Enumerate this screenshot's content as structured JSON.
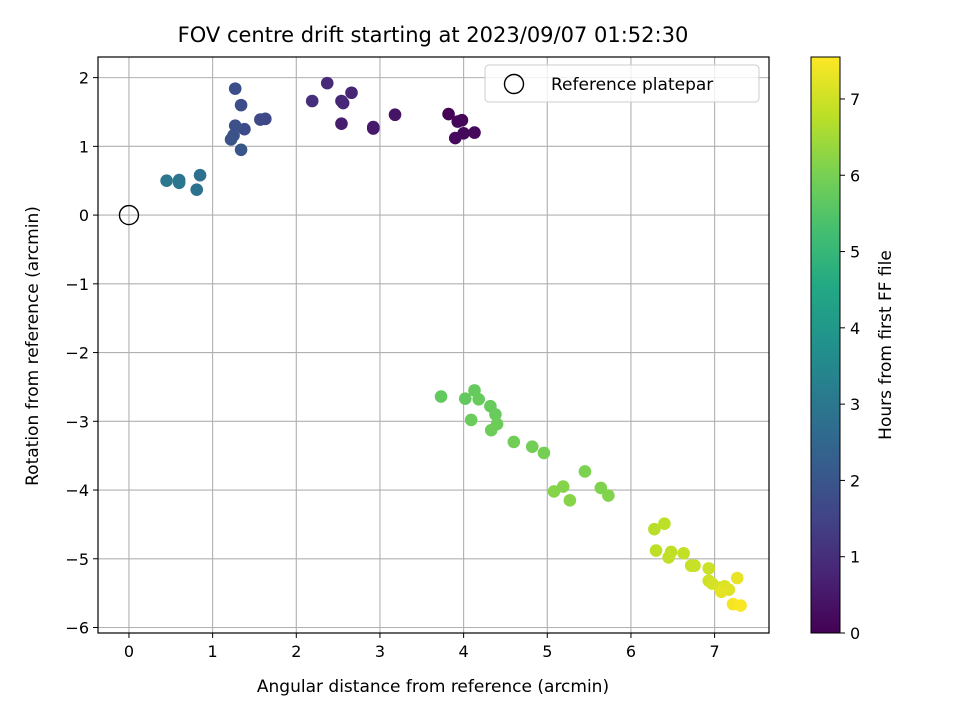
{
  "chart_data": {
    "type": "scatter",
    "title": "FOV centre drift starting at 2023/09/07 01:52:30",
    "xlabel": "Angular distance from reference (arcmin)",
    "ylabel": "Rotation from reference (arcmin)",
    "xlim": [
      -0.37,
      7.65
    ],
    "ylim": [
      -6.08,
      2.3
    ],
    "xticks": [
      0,
      1,
      2,
      3,
      4,
      5,
      6,
      7
    ],
    "yticks": [
      -6,
      -5,
      -4,
      -3,
      -2,
      -1,
      0,
      1,
      2
    ],
    "xtick_labels": [
      "0",
      "1",
      "2",
      "3",
      "4",
      "5",
      "6",
      "7"
    ],
    "ytick_labels": [
      "−6",
      "−5",
      "−4",
      "−3",
      "−2",
      "−1",
      "0",
      "1",
      "2"
    ],
    "grid": true,
    "colormap": "viridis",
    "colorbar": {
      "label": "Hours from first FF file",
      "range": [
        0,
        7.55
      ],
      "ticks": [
        0,
        1,
        2,
        3,
        4,
        5,
        6,
        7
      ],
      "tick_labels": [
        "0",
        "1",
        "2",
        "3",
        "4",
        "5",
        "6",
        "7"
      ]
    },
    "legend": {
      "placement": "top-right",
      "entries": [
        {
          "label": "Reference platepar",
          "marker": "open-circle"
        }
      ]
    },
    "reference_point": {
      "x": 0,
      "y": 0
    },
    "points": [
      {
        "x": 3.82,
        "y": 1.47,
        "hours": 0.05
      },
      {
        "x": 3.98,
        "y": 1.38,
        "hours": 0.1
      },
      {
        "x": 3.93,
        "y": 1.36,
        "hours": 0.12
      },
      {
        "x": 4.13,
        "y": 1.2,
        "hours": 0.15
      },
      {
        "x": 4.0,
        "y": 1.19,
        "hours": 0.18
      },
      {
        "x": 3.9,
        "y": 1.12,
        "hours": 0.2
      },
      {
        "x": 3.18,
        "y": 1.46,
        "hours": 0.4
      },
      {
        "x": 2.92,
        "y": 1.26,
        "hours": 0.5
      },
      {
        "x": 2.92,
        "y": 1.28,
        "hours": 0.52
      },
      {
        "x": 2.54,
        "y": 1.33,
        "hours": 0.6
      },
      {
        "x": 2.66,
        "y": 1.78,
        "hours": 0.75
      },
      {
        "x": 2.54,
        "y": 1.66,
        "hours": 0.8
      },
      {
        "x": 2.56,
        "y": 1.63,
        "hours": 0.82
      },
      {
        "x": 2.37,
        "y": 1.92,
        "hours": 0.9
      },
      {
        "x": 2.19,
        "y": 1.66,
        "hours": 1.0
      },
      {
        "x": 1.63,
        "y": 1.4,
        "hours": 1.6
      },
      {
        "x": 1.57,
        "y": 1.39,
        "hours": 1.65
      },
      {
        "x": 1.38,
        "y": 1.25,
        "hours": 1.7
      },
      {
        "x": 1.34,
        "y": 1.6,
        "hours": 1.75
      },
      {
        "x": 1.27,
        "y": 1.84,
        "hours": 1.8
      },
      {
        "x": 1.27,
        "y": 1.3,
        "hours": 1.85
      },
      {
        "x": 1.25,
        "y": 1.16,
        "hours": 1.9
      },
      {
        "x": 1.22,
        "y": 1.1,
        "hours": 1.95
      },
      {
        "x": 1.34,
        "y": 0.95,
        "hours": 2.0
      },
      {
        "x": 0.85,
        "y": 0.58,
        "hours": 2.8
      },
      {
        "x": 0.81,
        "y": 0.37,
        "hours": 2.85
      },
      {
        "x": 0.6,
        "y": 0.51,
        "hours": 2.9
      },
      {
        "x": 0.6,
        "y": 0.47,
        "hours": 2.95
      },
      {
        "x": 0.45,
        "y": 0.5,
        "hours": 3.0
      },
      {
        "x": 3.73,
        "y": -2.64,
        "hours": 5.7
      },
      {
        "x": 4.02,
        "y": -2.67,
        "hours": 5.72
      },
      {
        "x": 4.13,
        "y": -2.55,
        "hours": 5.74
      },
      {
        "x": 4.18,
        "y": -2.68,
        "hours": 5.76
      },
      {
        "x": 4.32,
        "y": -2.78,
        "hours": 5.78
      },
      {
        "x": 4.38,
        "y": -2.9,
        "hours": 5.8
      },
      {
        "x": 4.09,
        "y": -2.98,
        "hours": 5.82
      },
      {
        "x": 4.4,
        "y": -3.04,
        "hours": 5.84
      },
      {
        "x": 4.33,
        "y": -3.13,
        "hours": 5.86
      },
      {
        "x": 4.6,
        "y": -3.3,
        "hours": 5.9
      },
      {
        "x": 4.82,
        "y": -3.37,
        "hours": 5.93
      },
      {
        "x": 4.96,
        "y": -3.46,
        "hours": 5.96
      },
      {
        "x": 5.45,
        "y": -3.73,
        "hours": 6.05
      },
      {
        "x": 5.64,
        "y": -3.97,
        "hours": 6.1
      },
      {
        "x": 5.73,
        "y": -4.08,
        "hours": 6.12
      },
      {
        "x": 5.19,
        "y": -3.95,
        "hours": 6.15
      },
      {
        "x": 5.08,
        "y": -4.02,
        "hours": 6.18
      },
      {
        "x": 5.27,
        "y": -4.15,
        "hours": 6.2
      },
      {
        "x": 6.28,
        "y": -4.57,
        "hours": 6.75
      },
      {
        "x": 6.4,
        "y": -4.49,
        "hours": 6.78
      },
      {
        "x": 6.3,
        "y": -4.88,
        "hours": 6.8
      },
      {
        "x": 6.48,
        "y": -4.9,
        "hours": 6.82
      },
      {
        "x": 6.45,
        "y": -4.98,
        "hours": 6.84
      },
      {
        "x": 6.63,
        "y": -4.92,
        "hours": 6.86
      },
      {
        "x": 6.72,
        "y": -5.1,
        "hours": 6.9
      },
      {
        "x": 6.76,
        "y": -5.1,
        "hours": 6.92
      },
      {
        "x": 6.93,
        "y": -5.14,
        "hours": 6.95
      },
      {
        "x": 6.93,
        "y": -5.32,
        "hours": 7.0
      },
      {
        "x": 6.97,
        "y": -5.36,
        "hours": 7.05
      },
      {
        "x": 7.06,
        "y": -5.42,
        "hours": 7.1
      },
      {
        "x": 7.12,
        "y": -5.4,
        "hours": 7.15
      },
      {
        "x": 7.17,
        "y": -5.45,
        "hours": 7.2
      },
      {
        "x": 7.08,
        "y": -5.48,
        "hours": 7.25
      },
      {
        "x": 7.27,
        "y": -5.28,
        "hours": 7.3
      },
      {
        "x": 7.22,
        "y": -5.66,
        "hours": 7.45
      },
      {
        "x": 7.31,
        "y": -5.68,
        "hours": 7.5
      }
    ]
  }
}
